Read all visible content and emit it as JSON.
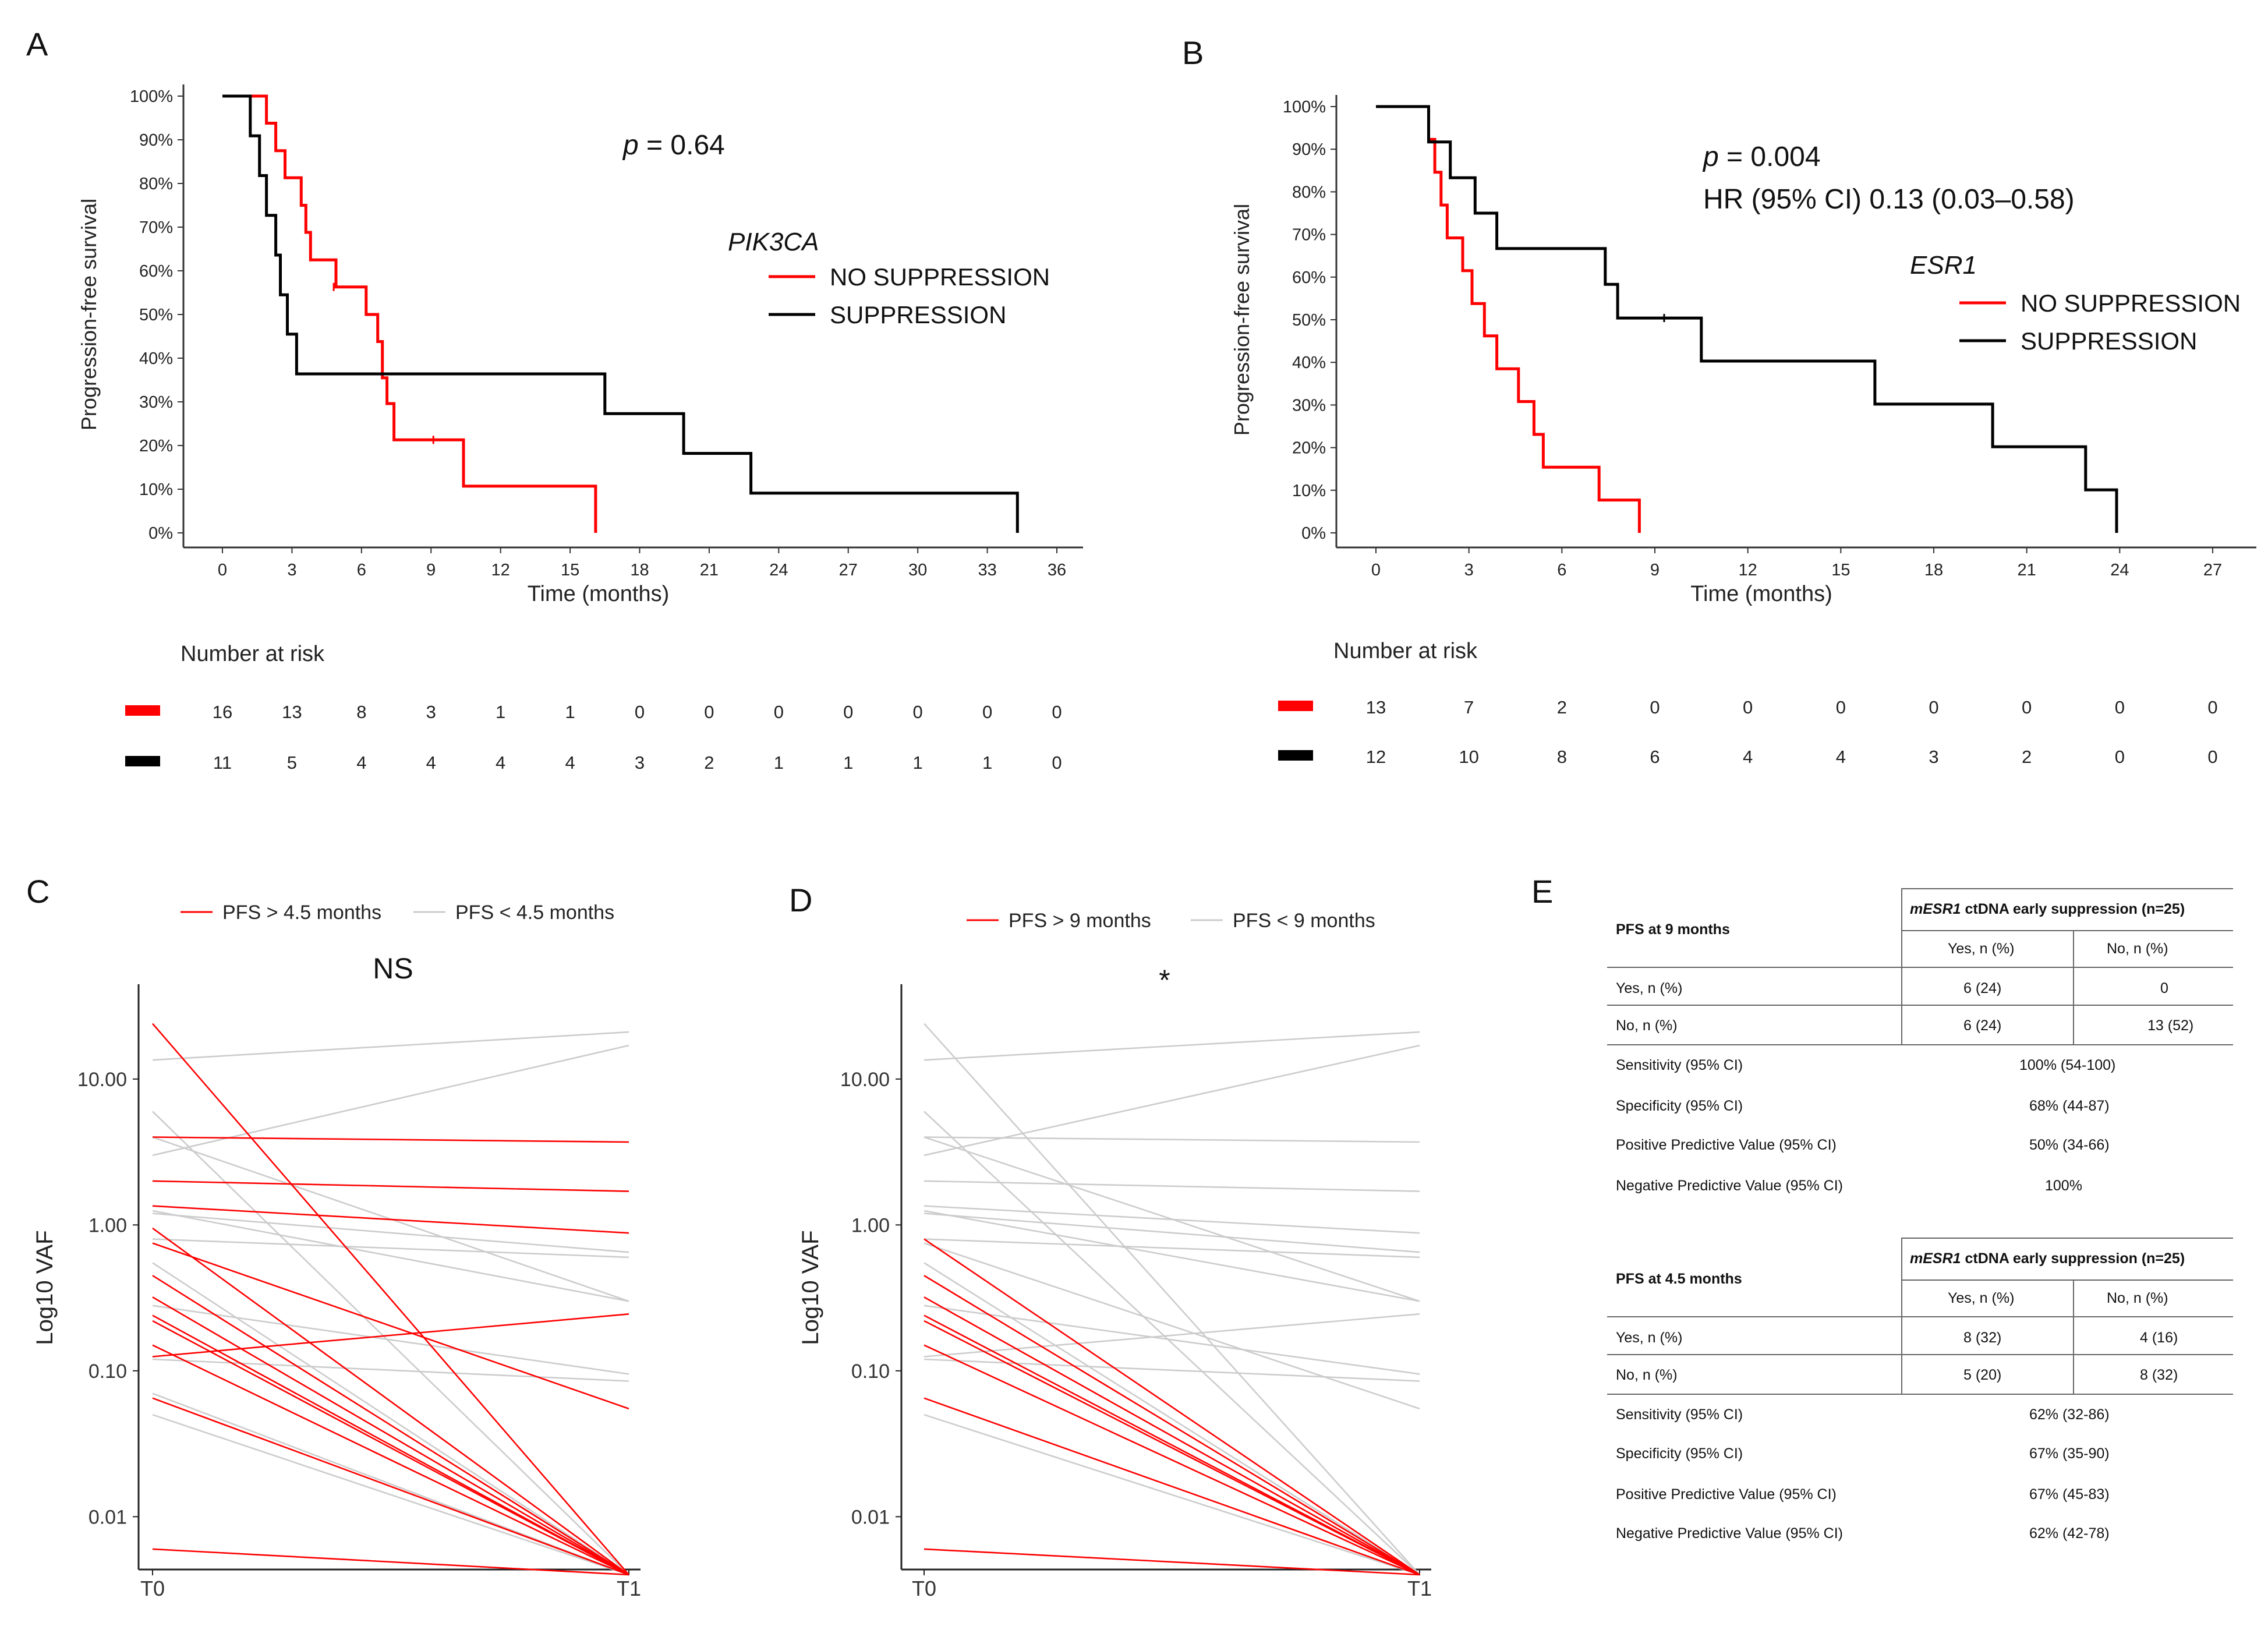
{
  "panel_letters": [
    "A",
    "B",
    "C",
    "D",
    "E"
  ],
  "chart_data": [
    {
      "id": "A",
      "type": "kaplan-meier",
      "ylabel": "Progression-free survival",
      "xlabel": "Time (months)",
      "xticks": [
        0,
        3,
        6,
        9,
        12,
        15,
        18,
        21,
        24,
        27,
        30,
        33,
        36
      ],
      "yticks": [
        "0%",
        "10%",
        "20%",
        "30%",
        "40%",
        "50%",
        "60%",
        "70%",
        "80%",
        "90%",
        "100%"
      ],
      "xlim": [
        0,
        36
      ],
      "ylim": [
        0,
        100
      ],
      "p_value_label": "p",
      "p_value_text": " = 0.64",
      "hr_text": "",
      "legend_title": "PIK3CA",
      "series": [
        {
          "name": "NO SUPPRESSION",
          "color": "#ff0000",
          "steps": [
            [
              0,
              100
            ],
            [
              1.9,
              100
            ],
            [
              1.9,
              93.8
            ],
            [
              2.3,
              93.8
            ],
            [
              2.3,
              87.5
            ],
            [
              2.7,
              87.5
            ],
            [
              2.7,
              81.3
            ],
            [
              3.4,
              81.3
            ],
            [
              3.4,
              75
            ],
            [
              3.6,
              75
            ],
            [
              3.6,
              68.8
            ],
            [
              3.8,
              68.8
            ],
            [
              3.8,
              62.5
            ],
            [
              4.9,
              62.5
            ],
            [
              4.9,
              56.3
            ],
            [
              6.2,
              56.3
            ],
            [
              6.2,
              50
            ],
            [
              6.7,
              50
            ],
            [
              6.7,
              43.8
            ],
            [
              6.9,
              43.8
            ],
            [
              6.9,
              35.5
            ],
            [
              7.1,
              35.5
            ],
            [
              7.1,
              29.6
            ],
            [
              7.4,
              29.6
            ],
            [
              7.4,
              21.3
            ],
            [
              10.4,
              21.3
            ],
            [
              10.4,
              10.7
            ],
            [
              16.1,
              10.7
            ],
            [
              16.1,
              0
            ]
          ],
          "censor": [
            [
              4.8,
              56.3
            ],
            [
              9.1,
              21.3
            ]
          ]
        },
        {
          "name": "SUPPRESSION",
          "color": "#000000",
          "steps": [
            [
              0,
              100
            ],
            [
              1.2,
              100
            ],
            [
              1.2,
              90.9
            ],
            [
              1.6,
              90.9
            ],
            [
              1.6,
              81.8
            ],
            [
              1.9,
              81.8
            ],
            [
              1.9,
              72.7
            ],
            [
              2.3,
              72.7
            ],
            [
              2.3,
              63.6
            ],
            [
              2.5,
              63.6
            ],
            [
              2.5,
              54.5
            ],
            [
              2.8,
              54.5
            ],
            [
              2.8,
              45.5
            ],
            [
              3.2,
              45.5
            ],
            [
              3.2,
              36.4
            ],
            [
              16.5,
              36.4
            ],
            [
              16.5,
              27.3
            ],
            [
              19.9,
              27.3
            ],
            [
              19.9,
              18.2
            ],
            [
              22.8,
              18.2
            ],
            [
              22.8,
              9.1
            ],
            [
              34.3,
              9.1
            ],
            [
              34.3,
              0
            ]
          ],
          "censor": []
        }
      ],
      "risk_table": {
        "title": "Number at risk",
        "rows": [
          {
            "color": "#ff0000",
            "values": [
              16,
              13,
              8,
              3,
              1,
              1,
              0,
              0,
              0,
              0,
              0,
              0,
              0
            ]
          },
          {
            "color": "#000000",
            "values": [
              11,
              5,
              4,
              4,
              4,
              4,
              3,
              2,
              1,
              1,
              1,
              1,
              0
            ]
          }
        ]
      }
    },
    {
      "id": "B",
      "type": "kaplan-meier",
      "ylabel": "Progression-free survival",
      "xlabel": "Time (months)",
      "xticks": [
        0,
        3,
        6,
        9,
        12,
        15,
        18,
        21,
        24,
        27
      ],
      "yticks": [
        "0%",
        "10%",
        "20%",
        "30%",
        "40%",
        "50%",
        "60%",
        "70%",
        "80%",
        "90%",
        "100%"
      ],
      "xlim": [
        0,
        27
      ],
      "ylim": [
        0,
        100
      ],
      "p_value_label": "p",
      "p_value_text": " = 0.004",
      "hr_text": "HR (95% CI) 0.13 (0.03–0.58)",
      "legend_title": "ESR1",
      "series": [
        {
          "name": "NO SUPPRESSION",
          "color": "#ff0000",
          "steps": [
            [
              0,
              100
            ],
            [
              1.7,
              100
            ],
            [
              1.7,
              92.3
            ],
            [
              1.9,
              92.3
            ],
            [
              1.9,
              84.6
            ],
            [
              2.1,
              84.6
            ],
            [
              2.1,
              76.9
            ],
            [
              2.3,
              76.9
            ],
            [
              2.3,
              69.2
            ],
            [
              2.8,
              69.2
            ],
            [
              2.8,
              61.5
            ],
            [
              3.1,
              61.5
            ],
            [
              3.1,
              53.8
            ],
            [
              3.5,
              53.8
            ],
            [
              3.5,
              46.2
            ],
            [
              3.9,
              46.2
            ],
            [
              3.9,
              38.5
            ],
            [
              4.6,
              38.5
            ],
            [
              4.6,
              30.8
            ],
            [
              5.1,
              30.8
            ],
            [
              5.1,
              23.1
            ],
            [
              5.4,
              23.1
            ],
            [
              5.4,
              15.4
            ],
            [
              7.2,
              15.4
            ],
            [
              7.2,
              7.7
            ],
            [
              8.5,
              7.7
            ],
            [
              8.5,
              0
            ]
          ],
          "censor": []
        },
        {
          "name": "SUPPRESSION",
          "color": "#000000",
          "steps": [
            [
              0,
              100
            ],
            [
              1.7,
              100
            ],
            [
              1.7,
              91.7
            ],
            [
              2.4,
              91.7
            ],
            [
              2.4,
              83.3
            ],
            [
              3.2,
              83.3
            ],
            [
              3.2,
              75
            ],
            [
              3.9,
              75
            ],
            [
              3.9,
              66.7
            ],
            [
              7.4,
              66.7
            ],
            [
              7.4,
              58.3
            ],
            [
              7.8,
              58.3
            ],
            [
              7.8,
              50.4
            ],
            [
              10.5,
              50.4
            ],
            [
              10.5,
              40.3
            ],
            [
              16.1,
              40.3
            ],
            [
              16.1,
              30.2
            ],
            [
              19.9,
              30.2
            ],
            [
              19.9,
              20.2
            ],
            [
              22.9,
              20.2
            ],
            [
              22.9,
              10.1
            ],
            [
              23.9,
              10.1
            ],
            [
              23.9,
              0
            ]
          ],
          "censor": [
            [
              9.3,
              50.4
            ]
          ]
        }
      ],
      "risk_table": {
        "title": "Number at risk",
        "rows": [
          {
            "color": "#ff0000",
            "values": [
              13,
              7,
              2,
              0,
              0,
              0,
              0,
              0,
              0,
              0
            ]
          },
          {
            "color": "#000000",
            "values": [
              12,
              10,
              8,
              6,
              4,
              4,
              3,
              2,
              0,
              0
            ]
          }
        ]
      }
    },
    {
      "id": "C",
      "type": "line",
      "ylabel": "Log10 VAF",
      "xticks": [
        "T0",
        "T1"
      ],
      "yticks": [
        "0.01",
        "0.10",
        "1.00",
        "10.00"
      ],
      "ylim_log10": [
        -2.35,
        1.65
      ],
      "annotation": "NS",
      "legend": [
        {
          "label": "PFS > 4.5 months",
          "color": "#ff0000"
        },
        {
          "label": "PFS < 4.5 months",
          "color": "#cccccc"
        }
      ],
      "series": [
        {
          "group": "red",
          "t0": 24.0,
          "t1": 0.004
        },
        {
          "group": "red",
          "t0": 4.0,
          "t1": 3.7
        },
        {
          "group": "red",
          "t0": 2.0,
          "t1": 1.7
        },
        {
          "group": "red",
          "t0": 1.35,
          "t1": 0.88
        },
        {
          "group": "red",
          "t0": 0.95,
          "t1": 0.004
        },
        {
          "group": "red",
          "t0": 0.75,
          "t1": 0.055
        },
        {
          "group": "red",
          "t0": 0.45,
          "t1": 0.004
        },
        {
          "group": "red",
          "t0": 0.32,
          "t1": 0.004
        },
        {
          "group": "red",
          "t0": 0.24,
          "t1": 0.004
        },
        {
          "group": "red",
          "t0": 0.22,
          "t1": 0.004
        },
        {
          "group": "red",
          "t0": 0.15,
          "t1": 0.004
        },
        {
          "group": "red",
          "t0": 0.125,
          "t1": 0.245
        },
        {
          "group": "red",
          "t0": 0.065,
          "t1": 0.004
        },
        {
          "group": "red",
          "t0": 0.006,
          "t1": 0.004
        },
        {
          "group": "grey",
          "t0": 13.5,
          "t1": 21.0
        },
        {
          "group": "grey",
          "t0": 3.0,
          "t1": 17.0
        },
        {
          "group": "grey",
          "t0": 6.0,
          "t1": 0.004
        },
        {
          "group": "grey",
          "t0": 4.0,
          "t1": 0.3
        },
        {
          "group": "grey",
          "t0": 1.25,
          "t1": 0.3
        },
        {
          "group": "grey",
          "t0": 1.2,
          "t1": 0.65
        },
        {
          "group": "grey",
          "t0": 0.8,
          "t1": 0.6
        },
        {
          "group": "grey",
          "t0": 0.55,
          "t1": 0.004
        },
        {
          "group": "grey",
          "t0": 0.28,
          "t1": 0.095
        },
        {
          "group": "grey",
          "t0": 0.12,
          "t1": 0.085
        },
        {
          "group": "grey",
          "t0": 0.07,
          "t1": 0.004
        },
        {
          "group": "grey",
          "t0": 0.05,
          "t1": 0.004
        }
      ]
    },
    {
      "id": "D",
      "type": "line",
      "ylabel": "Log10 VAF",
      "xticks": [
        "T0",
        "T1"
      ],
      "yticks": [
        "0.01",
        "0.10",
        "1.00",
        "10.00"
      ],
      "ylim_log10": [
        -2.35,
        1.65
      ],
      "annotation": "*",
      "legend": [
        {
          "label": "PFS > 9 months",
          "color": "#ff0000"
        },
        {
          "label": "PFS < 9 months",
          "color": "#cccccc"
        }
      ],
      "series": [
        {
          "group": "grey",
          "t0": 24.0,
          "t1": 0.004
        },
        {
          "group": "grey",
          "t0": 13.5,
          "t1": 21.0
        },
        {
          "group": "grey",
          "t0": 3.0,
          "t1": 17.0
        },
        {
          "group": "grey",
          "t0": 6.0,
          "t1": 0.004
        },
        {
          "group": "grey",
          "t0": 4.0,
          "t1": 3.7
        },
        {
          "group": "grey",
          "t0": 4.0,
          "t1": 0.3
        },
        {
          "group": "grey",
          "t0": 2.0,
          "t1": 1.7
        },
        {
          "group": "grey",
          "t0": 1.35,
          "t1": 0.88
        },
        {
          "group": "grey",
          "t0": 1.25,
          "t1": 0.3
        },
        {
          "group": "grey",
          "t0": 1.2,
          "t1": 0.65
        },
        {
          "group": "grey",
          "t0": 0.8,
          "t1": 0.6
        },
        {
          "group": "grey",
          "t0": 0.75,
          "t1": 0.055
        },
        {
          "group": "grey",
          "t0": 0.55,
          "t1": 0.004
        },
        {
          "group": "grey",
          "t0": 0.28,
          "t1": 0.095
        },
        {
          "group": "grey",
          "t0": 0.125,
          "t1": 0.245
        },
        {
          "group": "grey",
          "t0": 0.12,
          "t1": 0.085
        },
        {
          "group": "grey",
          "t0": 0.05,
          "t1": 0.004
        },
        {
          "group": "red",
          "t0": 0.8,
          "t1": 0.004
        },
        {
          "group": "red",
          "t0": 0.45,
          "t1": 0.004
        },
        {
          "group": "red",
          "t0": 0.32,
          "t1": 0.004
        },
        {
          "group": "red",
          "t0": 0.24,
          "t1": 0.004
        },
        {
          "group": "red",
          "t0": 0.22,
          "t1": 0.004
        },
        {
          "group": "red",
          "t0": 0.15,
          "t1": 0.004
        },
        {
          "group": "red",
          "t0": 0.065,
          "t1": 0.004
        },
        {
          "group": "red",
          "t0": 0.006,
          "t1": 0.004
        }
      ]
    }
  ],
  "tables": [
    {
      "row_header": "PFS at 9 months",
      "col_group_prefix": "mESR1",
      "col_group_suffix": " ctDNA early suppression (n=25)",
      "col_yes": "Yes, n (%)",
      "col_no": "No, n (%)",
      "rows": [
        {
          "label": "Yes, n (%)",
          "yes": "6 (24)",
          "no": "0"
        },
        {
          "label": "No, n (%)",
          "yes": "6 (24)",
          "no": "13 (52)"
        }
      ],
      "metrics": [
        {
          "label": "Sensitivity (95% CI)",
          "value": "100% (54-100)"
        },
        {
          "label": "Specificity (95% CI)",
          "value": "68% (44-87)"
        },
        {
          "label": "Positive Predictive Value (95% CI)",
          "value": "50% (34-66)"
        },
        {
          "label": "Negative Predictive Value (95% CI)",
          "value": "100%"
        }
      ]
    },
    {
      "row_header": "PFS at 4.5 months",
      "col_group_prefix": "mESR1",
      "col_group_suffix": " ctDNA early suppression (n=25)",
      "col_yes": "Yes, n (%)",
      "col_no": "No, n (%)",
      "rows": [
        {
          "label": "Yes, n (%)",
          "yes": "8 (32)",
          "no": "4 (16)"
        },
        {
          "label": "No, n (%)",
          "yes": "5 (20)",
          "no": "8 (32)"
        }
      ],
      "metrics": [
        {
          "label": "Sensitivity (95% CI)",
          "value": "62% (32-86)"
        },
        {
          "label": "Specificity (95% CI)",
          "value": "67% (35-90)"
        },
        {
          "label": "Positive Predictive Value (95% CI)",
          "value": "67% (45-83)"
        },
        {
          "label": "Negative Predictive Value (95% CI)",
          "value": "62% (42-78)"
        }
      ]
    }
  ]
}
